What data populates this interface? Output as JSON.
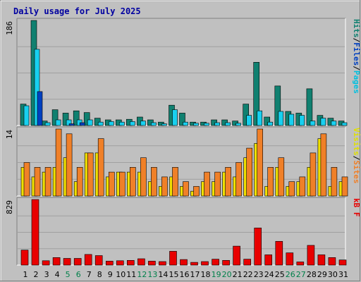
{
  "title": "Daily usage for July 2025",
  "colors": {
    "background": "#c0c0c0",
    "hits": "#108070",
    "files": "#18d0f0",
    "pages": "#0040c0",
    "visits": "#f0e000",
    "sites": "#f08028",
    "kbytes": "#e80000",
    "weekend_day_label": "#00804a",
    "weekday_day_label": "#000000",
    "title_text": "#0000a0"
  },
  "chart_data": [
    {
      "type": "bar",
      "title": "Daily usage for July 2025",
      "right_label": [
        {
          "text": "Pages",
          "color": "#00c0e0"
        },
        {
          "text": "/",
          "color": "#000000"
        },
        {
          "text": "Files",
          "color": "#0040c0"
        },
        {
          "text": "/",
          "color": "#000000"
        },
        {
          "text": "Hits",
          "color": "#108070"
        }
      ],
      "ymax_label": "186",
      "ylim": [
        0,
        186
      ],
      "grid": true,
      "categories": [
        "1",
        "2",
        "3",
        "4",
        "5",
        "6",
        "7",
        "8",
        "9",
        "10",
        "11",
        "12",
        "13",
        "14",
        "15",
        "16",
        "17",
        "18",
        "19",
        "20",
        "21",
        "22",
        "23",
        "24",
        "25",
        "26",
        "27",
        "28",
        "29",
        "30",
        "31"
      ],
      "series": [
        {
          "name": "Hits",
          "values": [
            38,
            186,
            8,
            28,
            22,
            26,
            23,
            13,
            10,
            10,
            11,
            15,
            10,
            6,
            36,
            22,
            6,
            6,
            10,
            10,
            8,
            38,
            112,
            15,
            70,
            25,
            22,
            65,
            18,
            13,
            8
          ]
        },
        {
          "name": "Files",
          "values": [
            35,
            135,
            5,
            10,
            10,
            10,
            10,
            6,
            7,
            6,
            7,
            8,
            5,
            3,
            28,
            6,
            4,
            4,
            5,
            5,
            4,
            18,
            26,
            6,
            25,
            20,
            18,
            8,
            13,
            8,
            5
          ]
        },
        {
          "name": "Pages",
          "values": [
            0,
            60,
            0,
            0,
            3,
            5,
            0,
            0,
            0,
            0,
            0,
            0,
            0,
            0,
            0,
            0,
            0,
            0,
            0,
            0,
            0,
            0,
            0,
            0,
            0,
            0,
            0,
            0,
            0,
            0,
            0
          ]
        }
      ]
    },
    {
      "type": "bar",
      "right_label": [
        {
          "text": "Sites",
          "color": "#f08028"
        },
        {
          "text": "/",
          "color": "#000000"
        },
        {
          "text": "Visits",
          "color": "#e0e000"
        }
      ],
      "ymax_label": "14",
      "ylim": [
        0,
        14
      ],
      "grid": true,
      "categories": [
        "1",
        "2",
        "3",
        "4",
        "5",
        "6",
        "7",
        "8",
        "9",
        "10",
        "11",
        "12",
        "13",
        "14",
        "15",
        "16",
        "17",
        "18",
        "19",
        "20",
        "21",
        "22",
        "23",
        "24",
        "25",
        "26",
        "27",
        "28",
        "29",
        "30",
        "31"
      ],
      "series": [
        {
          "name": "Visits",
          "values": [
            6,
            4,
            5,
            6,
            8,
            3,
            9,
            9,
            4,
            5,
            5,
            5,
            3,
            2,
            4,
            2,
            1,
            3,
            3,
            5,
            4,
            8,
            11,
            2,
            6,
            2,
            3,
            6,
            12,
            2,
            3
          ]
        },
        {
          "name": "Sites",
          "values": [
            7,
            6,
            6,
            14,
            13,
            6,
            9,
            12,
            5,
            5,
            6,
            8,
            6,
            4,
            6,
            3,
            2,
            5,
            5,
            6,
            7,
            10,
            14,
            6,
            8,
            3,
            4,
            9,
            13,
            6,
            4
          ]
        }
      ]
    },
    {
      "type": "bar",
      "right_label": [
        {
          "text": "KBytes",
          "color": "#e80000"
        }
      ],
      "right_label_display": "kB F",
      "ymax_label": "829",
      "ylim": [
        0,
        829
      ],
      "grid": true,
      "categories": [
        "1",
        "2",
        "3",
        "4",
        "5",
        "6",
        "7",
        "8",
        "9",
        "10",
        "11",
        "12",
        "13",
        "14",
        "15",
        "16",
        "17",
        "18",
        "19",
        "20",
        "21",
        "22",
        "23",
        "24",
        "25",
        "26",
        "27",
        "28",
        "29",
        "30",
        "31"
      ],
      "series": [
        {
          "name": "KBytes",
          "values": [
            190,
            829,
            55,
            95,
            85,
            85,
            135,
            120,
            50,
            55,
            60,
            80,
            50,
            45,
            175,
            70,
            35,
            45,
            75,
            60,
            240,
            75,
            470,
            130,
            300,
            155,
            40,
            250,
            130,
            95,
            65
          ]
        }
      ]
    }
  ],
  "day_labels": [
    {
      "text": "1",
      "weekend": false
    },
    {
      "text": "2",
      "weekend": false
    },
    {
      "text": "3",
      "weekend": false
    },
    {
      "text": "4",
      "weekend": false
    },
    {
      "text": "5",
      "weekend": true
    },
    {
      "text": "6",
      "weekend": true
    },
    {
      "text": "7",
      "weekend": false
    },
    {
      "text": "8",
      "weekend": false
    },
    {
      "text": "9",
      "weekend": false
    },
    {
      "text": "10",
      "weekend": false
    },
    {
      "text": "11",
      "weekend": false
    },
    {
      "text": "12",
      "weekend": true
    },
    {
      "text": "13",
      "weekend": true
    },
    {
      "text": "14",
      "weekend": false
    },
    {
      "text": "15",
      "weekend": false
    },
    {
      "text": "16",
      "weekend": false
    },
    {
      "text": "17",
      "weekend": false
    },
    {
      "text": "18",
      "weekend": false
    },
    {
      "text": "19",
      "weekend": true
    },
    {
      "text": "20",
      "weekend": true
    },
    {
      "text": "21",
      "weekend": false
    },
    {
      "text": "22",
      "weekend": false
    },
    {
      "text": "23",
      "weekend": false
    },
    {
      "text": "24",
      "weekend": false
    },
    {
      "text": "25",
      "weekend": false
    },
    {
      "text": "26",
      "weekend": true
    },
    {
      "text": "27",
      "weekend": true
    },
    {
      "text": "28",
      "weekend": false
    },
    {
      "text": "29",
      "weekend": false
    },
    {
      "text": "30",
      "weekend": false
    },
    {
      "text": "31",
      "weekend": false
    }
  ]
}
